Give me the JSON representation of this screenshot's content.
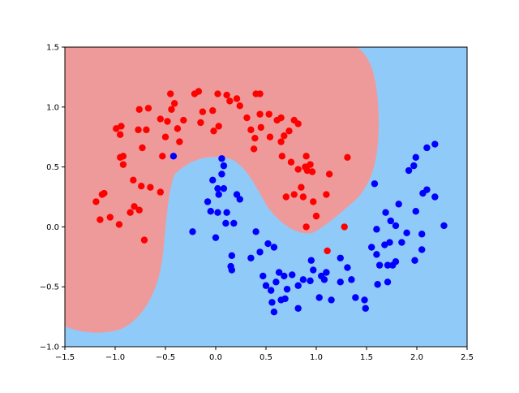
{
  "chart_data": {
    "type": "scatter",
    "xlim": [
      -1.5,
      2.5
    ],
    "ylim": [
      -1.0,
      1.5
    ],
    "xticks": [
      {
        "value": -1.5,
        "label": "−1.5"
      },
      {
        "value": -1.0,
        "label": "−1.0"
      },
      {
        "value": -0.5,
        "label": "−0.5"
      },
      {
        "value": 0.0,
        "label": "0.0"
      },
      {
        "value": 0.5,
        "label": "0.5"
      },
      {
        "value": 1.0,
        "label": "1.0"
      },
      {
        "value": 1.5,
        "label": "1.5"
      },
      {
        "value": 2.0,
        "label": "2.0"
      },
      {
        "value": 2.5,
        "label": "2.5"
      }
    ],
    "yticks": [
      {
        "value": -1.0,
        "label": "−1.0"
      },
      {
        "value": -0.5,
        "label": "−0.5"
      },
      {
        "value": 0.0,
        "label": "0.0"
      },
      {
        "value": 0.5,
        "label": "0.5"
      },
      {
        "value": 1.0,
        "label": "1.0"
      },
      {
        "value": 1.5,
        "label": "1.5"
      }
    ],
    "series": [
      {
        "color": "#ff0000",
        "x": [
          -1.19,
          -1.13,
          -1.11,
          -1.15,
          -1.05,
          -0.96,
          -0.99,
          -0.94,
          -0.95,
          -0.95,
          -0.92,
          -0.92,
          -0.82,
          -0.85,
          -0.81,
          -0.76,
          -0.71,
          -0.74,
          -0.77,
          -0.69,
          -0.73,
          -0.76,
          -0.67,
          -0.65,
          -0.55,
          -0.55,
          -0.48,
          -0.5,
          -0.53,
          -0.44,
          -0.41,
          -0.45,
          -0.38,
          -0.32,
          -0.36,
          -0.21,
          -0.17,
          -0.15,
          -0.13,
          -0.03,
          -0.02,
          0.03,
          0.02,
          0.11,
          0.14,
          0.21,
          0.24,
          0.31,
          0.35,
          0.38,
          0.39,
          0.45,
          0.44,
          0.53,
          0.4,
          0.44,
          0.54,
          0.61,
          0.65,
          0.65,
          0.66,
          0.68,
          0.7,
          0.73,
          0.75,
          0.78,
          0.78,
          0.82,
          0.82,
          0.85,
          0.89,
          0.9,
          0.87,
          0.91,
          0.94,
          0.96,
          0.97,
          0.9,
          1.0,
          1.1,
          1.13,
          1.31,
          1.28,
          1.11
        ],
        "y": [
          0.21,
          0.27,
          0.28,
          0.06,
          0.08,
          0.02,
          0.82,
          0.84,
          0.77,
          0.58,
          0.59,
          0.52,
          0.39,
          0.12,
          0.17,
          0.14,
          -0.11,
          0.34,
          0.81,
          0.81,
          0.66,
          0.98,
          0.99,
          0.33,
          0.29,
          0.9,
          0.88,
          0.75,
          0.59,
          0.98,
          1.03,
          1.11,
          0.82,
          0.89,
          0.71,
          1.11,
          1.13,
          0.87,
          0.96,
          0.97,
          0.8,
          0.84,
          1.11,
          1.1,
          1.05,
          1.07,
          1.01,
          0.91,
          0.81,
          0.65,
          0.74,
          0.83,
          0.94,
          0.94,
          1.11,
          1.11,
          0.75,
          0.89,
          0.91,
          0.71,
          0.59,
          0.76,
          0.25,
          0.8,
          0.54,
          0.89,
          0.27,
          0.86,
          0.48,
          0.33,
          0.5,
          0.59,
          0.25,
          0.47,
          0.52,
          0.46,
          0.21,
          0.0,
          0.09,
          0.27,
          0.44,
          0.58,
          0.0,
          -0.2
        ]
      },
      {
        "color": "#0000ff",
        "x": [
          -0.42,
          0.06,
          0.08,
          0.06,
          -0.03,
          0.02,
          0.08,
          0.03,
          -0.08,
          -0.05,
          0.02,
          0.11,
          0.21,
          0.24,
          0.1,
          0.18,
          -0.23,
          0.0,
          0.16,
          0.15,
          0.16,
          0.35,
          0.4,
          0.44,
          0.52,
          0.58,
          0.47,
          0.5,
          0.55,
          0.56,
          0.58,
          0.6,
          0.63,
          0.68,
          0.71,
          0.69,
          0.65,
          0.76,
          0.82,
          0.82,
          0.87,
          0.94,
          0.97,
          0.95,
          1.05,
          1.08,
          1.1,
          1.03,
          1.15,
          1.24,
          1.24,
          1.31,
          1.35,
          1.39,
          1.48,
          1.49,
          1.55,
          1.58,
          1.6,
          1.6,
          1.61,
          1.63,
          1.68,
          1.69,
          1.71,
          1.73,
          1.74,
          1.71,
          1.76,
          1.79,
          1.79,
          1.82,
          1.85,
          1.9,
          1.92,
          1.97,
          1.98,
          1.99,
          1.99,
          2.05,
          2.05,
          2.06,
          2.1,
          2.1,
          2.18,
          2.18,
          2.27
        ],
        "y": [
          0.59,
          0.57,
          0.51,
          0.44,
          0.39,
          0.32,
          0.32,
          0.27,
          0.21,
          0.13,
          0.12,
          0.12,
          0.27,
          0.23,
          0.03,
          0.03,
          -0.04,
          -0.09,
          -0.24,
          -0.33,
          -0.36,
          -0.26,
          -0.04,
          -0.21,
          -0.14,
          -0.17,
          -0.41,
          -0.49,
          -0.53,
          -0.63,
          -0.71,
          -0.46,
          -0.38,
          -0.41,
          -0.52,
          -0.6,
          -0.61,
          -0.4,
          -0.49,
          -0.68,
          -0.44,
          -0.45,
          -0.36,
          -0.28,
          -0.41,
          -0.44,
          -0.38,
          -0.59,
          -0.61,
          -0.26,
          -0.46,
          -0.34,
          -0.44,
          -0.59,
          -0.61,
          -0.68,
          -0.17,
          0.36,
          -0.02,
          -0.23,
          -0.48,
          -0.32,
          -0.15,
          0.12,
          -0.32,
          -0.13,
          0.05,
          -0.46,
          -0.32,
          -0.29,
          0.01,
          0.19,
          -0.13,
          -0.05,
          0.47,
          0.51,
          -0.28,
          0.13,
          0.58,
          -0.06,
          -0.19,
          0.28,
          0.31,
          0.66,
          0.69,
          0.25,
          0.01
        ]
      }
    ]
  }
}
